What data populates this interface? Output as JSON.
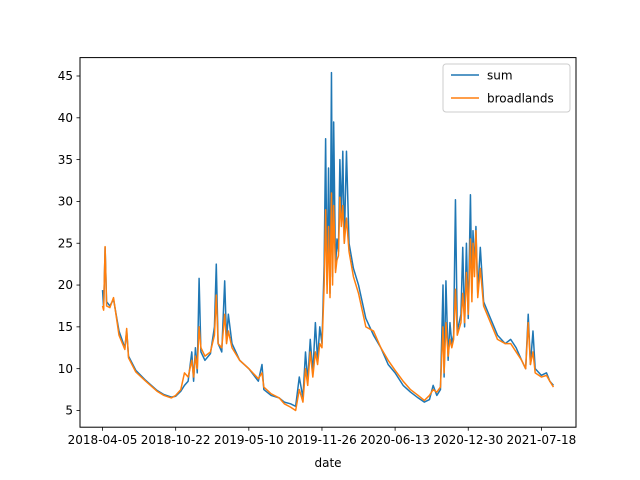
{
  "chart_data": {
    "type": "line",
    "xlabel": "date",
    "ylabel": "",
    "ylim": [
      3.0,
      47.2
    ],
    "yticks": [
      5,
      10,
      15,
      20,
      25,
      30,
      35,
      40,
      45
    ],
    "xticks": [
      "2018-04-05",
      "2018-10-22",
      "2019-05-10",
      "2019-11-26",
      "2020-06-13",
      "2020-12-30",
      "2021-07-18"
    ],
    "grid": false,
    "legend": "top-right",
    "series": [
      {
        "name": "sum",
        "color": "#1f77b4",
        "points": [
          [
            "2018-04-05",
            19.4
          ],
          [
            "2018-04-08",
            17.2
          ],
          [
            "2018-04-12",
            24.5
          ],
          [
            "2018-04-16",
            18.0
          ],
          [
            "2018-04-25",
            17.5
          ],
          [
            "2018-05-05",
            18.3
          ],
          [
            "2018-05-20",
            14.5
          ],
          [
            "2018-06-05",
            12.5
          ],
          [
            "2018-06-10",
            14.5
          ],
          [
            "2018-06-15",
            11.5
          ],
          [
            "2018-07-05",
            9.8
          ],
          [
            "2018-08-01",
            8.6
          ],
          [
            "2018-09-01",
            7.4
          ],
          [
            "2018-09-20",
            6.9
          ],
          [
            "2018-10-10",
            6.6
          ],
          [
            "2018-10-22",
            6.7
          ],
          [
            "2018-11-05",
            7.3
          ],
          [
            "2018-11-15",
            8.0
          ],
          [
            "2018-11-25",
            8.5
          ],
          [
            "2018-12-05",
            12.0
          ],
          [
            "2018-12-10",
            8.5
          ],
          [
            "2018-12-15",
            12.5
          ],
          [
            "2018-12-20",
            9.5
          ],
          [
            "2018-12-25",
            20.8
          ],
          [
            "2018-12-30",
            12.0
          ],
          [
            "2019-01-10",
            11.0
          ],
          [
            "2019-01-25",
            11.8
          ],
          [
            "2019-02-05",
            15.0
          ],
          [
            "2019-02-10",
            22.5
          ],
          [
            "2019-02-15",
            13.0
          ],
          [
            "2019-02-25",
            12.0
          ],
          [
            "2019-03-05",
            20.5
          ],
          [
            "2019-03-10",
            13.5
          ],
          [
            "2019-03-15",
            16.5
          ],
          [
            "2019-03-25",
            13.0
          ],
          [
            "2019-04-15",
            11.0
          ],
          [
            "2019-05-10",
            10.0
          ],
          [
            "2019-06-05",
            8.5
          ],
          [
            "2019-06-15",
            10.5
          ],
          [
            "2019-06-20",
            7.5
          ],
          [
            "2019-07-10",
            6.8
          ],
          [
            "2019-08-01",
            6.5
          ],
          [
            "2019-08-15",
            6.0
          ],
          [
            "2019-09-01",
            5.8
          ],
          [
            "2019-09-15",
            5.5
          ],
          [
            "2019-09-25",
            9.0
          ],
          [
            "2019-10-05",
            6.5
          ],
          [
            "2019-10-12",
            12.0
          ],
          [
            "2019-10-18",
            8.5
          ],
          [
            "2019-10-25",
            13.5
          ],
          [
            "2019-11-01",
            9.5
          ],
          [
            "2019-11-08",
            15.5
          ],
          [
            "2019-11-14",
            11.0
          ],
          [
            "2019-11-20",
            15.0
          ],
          [
            "2019-11-26",
            13.0
          ],
          [
            "2019-12-02",
            22.5
          ],
          [
            "2019-12-06",
            37.5
          ],
          [
            "2019-12-10",
            20.0
          ],
          [
            "2019-12-14",
            34.0
          ],
          [
            "2019-12-18",
            19.0
          ],
          [
            "2019-12-22",
            45.4
          ],
          [
            "2019-12-25",
            21.0
          ],
          [
            "2019-12-28",
            39.5
          ],
          [
            "2020-01-02",
            22.0
          ],
          [
            "2020-01-06",
            25.5
          ],
          [
            "2020-01-10",
            24.0
          ],
          [
            "2020-01-14",
            35.0
          ],
          [
            "2020-01-18",
            28.0
          ],
          [
            "2020-01-22",
            36.0
          ],
          [
            "2020-01-26",
            25.0
          ],
          [
            "2020-02-01",
            36.0
          ],
          [
            "2020-02-08",
            25.0
          ],
          [
            "2020-02-20",
            22.0
          ],
          [
            "2020-03-05",
            20.0
          ],
          [
            "2020-03-25",
            16.0
          ],
          [
            "2020-04-15",
            14.0
          ],
          [
            "2020-05-05",
            12.5
          ],
          [
            "2020-05-25",
            10.5
          ],
          [
            "2020-06-13",
            9.5
          ],
          [
            "2020-07-05",
            8.0
          ],
          [
            "2020-07-25",
            7.2
          ],
          [
            "2020-08-15",
            6.5
          ],
          [
            "2020-09-01",
            6.0
          ],
          [
            "2020-09-15",
            6.3
          ],
          [
            "2020-09-25",
            8.0
          ],
          [
            "2020-10-05",
            6.8
          ],
          [
            "2020-10-15",
            7.5
          ],
          [
            "2020-10-22",
            20.0
          ],
          [
            "2020-10-25",
            9.0
          ],
          [
            "2020-10-30",
            20.5
          ],
          [
            "2020-11-05",
            11.0
          ],
          [
            "2020-11-10",
            15.5
          ],
          [
            "2020-11-15",
            13.0
          ],
          [
            "2020-11-20",
            14.0
          ],
          [
            "2020-11-25",
            30.2
          ],
          [
            "2020-11-30",
            14.5
          ],
          [
            "2020-12-10",
            16.5
          ],
          [
            "2020-12-15",
            24.5
          ],
          [
            "2020-12-20",
            15.0
          ],
          [
            "2020-12-25",
            25.0
          ],
          [
            "2020-12-30",
            16.0
          ],
          [
            "2021-01-05",
            30.8
          ],
          [
            "2021-01-09",
            19.0
          ],
          [
            "2021-01-12",
            26.5
          ],
          [
            "2021-01-16",
            22.0
          ],
          [
            "2021-01-20",
            27.0
          ],
          [
            "2021-01-25",
            19.0
          ],
          [
            "2021-02-01",
            24.5
          ],
          [
            "2021-02-10",
            18.0
          ],
          [
            "2021-03-01",
            16.0
          ],
          [
            "2021-03-20",
            14.0
          ],
          [
            "2021-04-10",
            13.0
          ],
          [
            "2021-04-25",
            13.5
          ],
          [
            "2021-05-10",
            12.5
          ],
          [
            "2021-05-25",
            11.0
          ],
          [
            "2021-06-05",
            10.0
          ],
          [
            "2021-06-12",
            16.5
          ],
          [
            "2021-06-18",
            10.5
          ],
          [
            "2021-06-25",
            14.5
          ],
          [
            "2021-07-01",
            10.0
          ],
          [
            "2021-07-18",
            9.2
          ],
          [
            "2021-08-01",
            9.5
          ],
          [
            "2021-08-10",
            8.5
          ],
          [
            "2021-08-20",
            8.0
          ]
        ]
      },
      {
        "name": "broadlands",
        "color": "#ff7f0e",
        "points": [
          [
            "2018-04-05",
            17.5
          ],
          [
            "2018-04-08",
            17.0
          ],
          [
            "2018-04-12",
            24.6
          ],
          [
            "2018-04-16",
            17.5
          ],
          [
            "2018-04-25",
            17.3
          ],
          [
            "2018-05-05",
            18.5
          ],
          [
            "2018-05-20",
            14.0
          ],
          [
            "2018-06-05",
            12.3
          ],
          [
            "2018-06-10",
            14.8
          ],
          [
            "2018-06-15",
            11.3
          ],
          [
            "2018-07-05",
            9.6
          ],
          [
            "2018-08-01",
            8.5
          ],
          [
            "2018-09-01",
            7.3
          ],
          [
            "2018-09-20",
            6.8
          ],
          [
            "2018-10-10",
            6.5
          ],
          [
            "2018-10-22",
            6.8
          ],
          [
            "2018-11-05",
            7.5
          ],
          [
            "2018-11-15",
            9.5
          ],
          [
            "2018-11-25",
            9.0
          ],
          [
            "2018-12-05",
            11.0
          ],
          [
            "2018-12-10",
            9.0
          ],
          [
            "2018-12-15",
            11.5
          ],
          [
            "2018-12-20",
            10.0
          ],
          [
            "2018-12-25",
            15.0
          ],
          [
            "2018-12-30",
            12.5
          ],
          [
            "2019-01-10",
            11.5
          ],
          [
            "2019-01-25",
            12.0
          ],
          [
            "2019-02-05",
            14.0
          ],
          [
            "2019-02-10",
            18.8
          ],
          [
            "2019-02-15",
            13.0
          ],
          [
            "2019-02-25",
            12.5
          ],
          [
            "2019-03-05",
            16.5
          ],
          [
            "2019-03-10",
            13.0
          ],
          [
            "2019-03-15",
            14.5
          ],
          [
            "2019-03-25",
            12.5
          ],
          [
            "2019-04-15",
            11.0
          ],
          [
            "2019-05-10",
            10.0
          ],
          [
            "2019-06-05",
            8.8
          ],
          [
            "2019-06-15",
            9.5
          ],
          [
            "2019-06-20",
            7.8
          ],
          [
            "2019-07-10",
            7.0
          ],
          [
            "2019-08-01",
            6.5
          ],
          [
            "2019-08-15",
            5.8
          ],
          [
            "2019-09-01",
            5.4
          ],
          [
            "2019-09-15",
            5.0
          ],
          [
            "2019-09-25",
            7.5
          ],
          [
            "2019-10-05",
            6.0
          ],
          [
            "2019-10-12",
            10.0
          ],
          [
            "2019-10-18",
            8.0
          ],
          [
            "2019-10-25",
            12.0
          ],
          [
            "2019-11-01",
            9.0
          ],
          [
            "2019-11-08",
            12.0
          ],
          [
            "2019-11-14",
            10.5
          ],
          [
            "2019-11-20",
            13.0
          ],
          [
            "2019-11-26",
            12.5
          ],
          [
            "2019-12-02",
            20.0
          ],
          [
            "2019-12-06",
            29.0
          ],
          [
            "2019-12-10",
            19.0
          ],
          [
            "2019-12-14",
            27.0
          ],
          [
            "2019-12-18",
            18.5
          ],
          [
            "2019-12-22",
            31.0
          ],
          [
            "2019-12-25",
            20.0
          ],
          [
            "2019-12-28",
            29.5
          ],
          [
            "2020-01-02",
            21.5
          ],
          [
            "2020-01-06",
            23.0
          ],
          [
            "2020-01-10",
            23.5
          ],
          [
            "2020-01-14",
            30.5
          ],
          [
            "2020-01-18",
            27.0
          ],
          [
            "2020-01-22",
            29.5
          ],
          [
            "2020-01-26",
            25.0
          ],
          [
            "2020-02-01",
            28.0
          ],
          [
            "2020-02-08",
            24.0
          ],
          [
            "2020-02-20",
            21.0
          ],
          [
            "2020-03-05",
            19.0
          ],
          [
            "2020-03-25",
            15.0
          ],
          [
            "2020-04-15",
            14.5
          ],
          [
            "2020-05-05",
            12.5
          ],
          [
            "2020-05-25",
            11.0
          ],
          [
            "2020-06-13",
            9.8
          ],
          [
            "2020-07-05",
            8.5
          ],
          [
            "2020-07-25",
            7.5
          ],
          [
            "2020-08-15",
            6.8
          ],
          [
            "2020-09-01",
            6.2
          ],
          [
            "2020-09-15",
            6.8
          ],
          [
            "2020-09-25",
            7.5
          ],
          [
            "2020-10-05",
            7.2
          ],
          [
            "2020-10-15",
            7.8
          ],
          [
            "2020-10-22",
            15.0
          ],
          [
            "2020-10-25",
            9.5
          ],
          [
            "2020-10-30",
            15.5
          ],
          [
            "2020-11-05",
            11.5
          ],
          [
            "2020-11-10",
            13.5
          ],
          [
            "2020-11-15",
            12.5
          ],
          [
            "2020-11-20",
            13.5
          ],
          [
            "2020-11-25",
            19.5
          ],
          [
            "2020-11-30",
            14.0
          ],
          [
            "2020-12-10",
            15.5
          ],
          [
            "2020-12-15",
            19.0
          ],
          [
            "2020-12-20",
            15.5
          ],
          [
            "2020-12-25",
            21.5
          ],
          [
            "2020-12-30",
            16.5
          ],
          [
            "2021-01-05",
            25.5
          ],
          [
            "2021-01-09",
            18.0
          ],
          [
            "2021-01-12",
            25.0
          ],
          [
            "2021-01-16",
            21.0
          ],
          [
            "2021-01-20",
            26.5
          ],
          [
            "2021-01-25",
            18.5
          ],
          [
            "2021-02-01",
            22.0
          ],
          [
            "2021-02-10",
            17.5
          ],
          [
            "2021-03-01",
            15.5
          ],
          [
            "2021-03-20",
            13.5
          ],
          [
            "2021-04-10",
            13.0
          ],
          [
            "2021-04-25",
            13.0
          ],
          [
            "2021-05-10",
            12.0
          ],
          [
            "2021-05-25",
            11.0
          ],
          [
            "2021-06-05",
            10.0
          ],
          [
            "2021-06-12",
            15.5
          ],
          [
            "2021-06-18",
            10.5
          ],
          [
            "2021-06-25",
            12.0
          ],
          [
            "2021-07-01",
            9.5
          ],
          [
            "2021-07-18",
            9.0
          ],
          [
            "2021-08-01",
            9.2
          ],
          [
            "2021-08-10",
            8.5
          ],
          [
            "2021-08-20",
            7.8
          ]
        ]
      }
    ]
  }
}
